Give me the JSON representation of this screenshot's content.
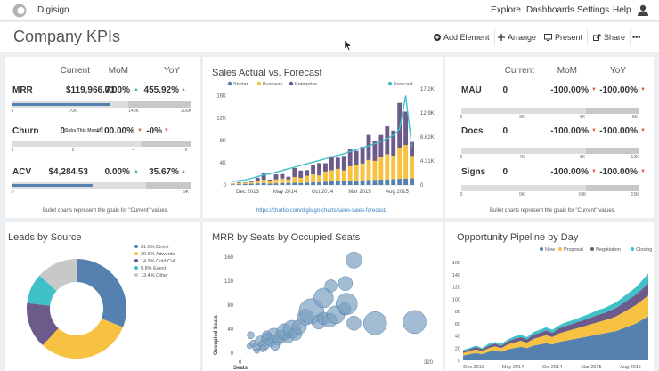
{
  "app": {
    "name": "Digisign",
    "nav": [
      "Explore",
      "Dashboards",
      "Settings",
      "Help"
    ]
  },
  "page": {
    "title": "Company KPIs",
    "toolbar": {
      "add_element": "Add Element",
      "arrange": "Arrange",
      "present": "Present",
      "share": "Share",
      "more": "•••"
    }
  },
  "colors": {
    "blue": "#5581b0",
    "orange": "#f7c242",
    "purple": "#6b5a8a",
    "teal": "#40c0c8",
    "green": "#5db87a",
    "grey": "#c8c8c8"
  },
  "kpi_left": {
    "headers": {
      "current": "Current",
      "mom": "MoM",
      "yoy": "YoY"
    },
    "rows": [
      {
        "label": "MRR",
        "current": "$119,966.71",
        "mom": "0.00%",
        "mom_dir": "▲",
        "yoy": "455.92%",
        "yoy_dir": "▲",
        "progress": 0.55,
        "ticks": [
          "0",
          "70K",
          "140K",
          "200K"
        ]
      },
      {
        "label": "Churn",
        "current": "0",
        "current_sub": "Subs This Month",
        "mom": "-100.00%",
        "mom_dir": "▼",
        "yoy": "-0%",
        "yoy_dir": "▼",
        "progress": 0.0,
        "ticks": [
          "0",
          "2",
          "4",
          "6"
        ]
      },
      {
        "label": "ACV",
        "current": "$4,284.53",
        "mom": "0.00%",
        "mom_dir": "▲",
        "yoy": "35.67%",
        "yoy_dir": "▲",
        "progress": 0.45,
        "ticks": [
          "0",
          "9K"
        ]
      }
    ],
    "note": "Bullet charts represent the goals for \"Current\" values."
  },
  "kpi_right": {
    "headers": {
      "current": "Current",
      "mom": "MoM",
      "yoy": "YoY"
    },
    "rows": [
      {
        "label": "MAU",
        "current": "0",
        "mom": "-100.00%",
        "mom_dir": "▼",
        "yoy": "-100.00%",
        "yoy_dir": "▼",
        "progress": 0.0,
        "ticks": [
          "0",
          "3K",
          "6K",
          "8K"
        ]
      },
      {
        "label": "Docs",
        "current": "0",
        "mom": "-100.00%",
        "mom_dir": "▼",
        "yoy": "-100.00%",
        "yoy_dir": "▼",
        "progress": 0.0,
        "ticks": [
          "0",
          "4K",
          "8K",
          "12K"
        ]
      },
      {
        "label": "Signs",
        "current": "0",
        "mom": "-100.00%",
        "mom_dir": "▼",
        "yoy": "-100.00%",
        "yoy_dir": "▼",
        "progress": 0.0,
        "ticks": [
          "0",
          "5K",
          "10K",
          "15K"
        ]
      }
    ],
    "note": "Bullet charts represent the goals for \"Current\" values."
  },
  "sales": {
    "title": "Sales Actual vs. Forecast",
    "link": "https://chartio.com/digisign-charts/sales-sales-forecast/"
  },
  "leads": {
    "title": "Leads by Source"
  },
  "mrr_seats": {
    "title": "MRR by Seats by Occupied Seats"
  },
  "pipeline": {
    "title": "Opportunity Pipeline by Day"
  },
  "chart_data": [
    {
      "type": "bar",
      "title": "Sales Actual vs. Forecast",
      "legend": [
        "Starter",
        "Business",
        "Enterprise"
      ],
      "forecast_label": "Forecast",
      "x_ticks": [
        "Dec 2013",
        "May 2014",
        "Oct 2014",
        "Mar 2015",
        "Aug 2015"
      ],
      "y_left_ticks": [
        "0",
        "4K",
        "8K",
        "12K",
        "16K"
      ],
      "y_right_ticks": [
        "0",
        "4.31K",
        "8.62K",
        "12.9K",
        "17.2K"
      ],
      "ylim": [
        0,
        17200
      ],
      "series": [
        {
          "name": "Starter",
          "values": [
            120,
            150,
            180,
            220,
            300,
            350,
            260,
            300,
            350,
            380,
            420,
            380,
            450,
            500,
            520,
            600,
            640,
            680,
            700,
            760,
            800,
            840,
            880,
            920,
            960,
            1000,
            1050,
            1100,
            1150,
            1200
          ]
        },
        {
          "name": "Business",
          "values": [
            100,
            200,
            150,
            300,
            500,
            600,
            400,
            700,
            800,
            600,
            1000,
            900,
            1200,
            1400,
            1200,
            1800,
            2000,
            2200,
            1900,
            2600,
            2800,
            3000,
            3600,
            3400,
            4000,
            4500,
            4200,
            5600,
            6000,
            4000
          ]
        },
        {
          "name": "Enterprise",
          "values": [
            50,
            150,
            100,
            200,
            500,
            1200,
            300,
            900,
            800,
            500,
            1600,
            1300,
            1000,
            1600,
            2200,
            1500,
            2500,
            2000,
            2600,
            3000,
            2500,
            3000,
            4500,
            3500,
            4000,
            5000,
            4500,
            8000,
            6000,
            2500
          ]
        }
      ],
      "forecast": [
        600,
        800,
        900,
        1200,
        1500,
        1800,
        2000,
        2300,
        2600,
        2900,
        3200,
        3500,
        3800,
        4100,
        4400,
        4700,
        5000,
        5300,
        5600,
        6000,
        6300,
        6700,
        7000,
        7400,
        7800,
        8300,
        8900,
        10000,
        16000,
        6800
      ]
    },
    {
      "type": "pie",
      "title": "Leads by Source",
      "labels": [
        "Direct",
        "Adwords",
        "Cold Call",
        "Event",
        "Other"
      ],
      "values": [
        31.0,
        30.9,
        14.9,
        9.8,
        13.4
      ],
      "legend": [
        "31.0% Direct",
        "30.9% Adwords",
        "14.9% Cold Call",
        "9.8% Event",
        "13.4% Other"
      ]
    },
    {
      "type": "scatter",
      "title": "MRR by Seats by Occupied Seats",
      "xlabel": "Seats",
      "ylabel": "Occupied Seats",
      "x_ticks": [
        "0",
        "320"
      ],
      "y_ticks": [
        "0",
        "40",
        "80",
        "120",
        "160"
      ],
      "xlim": [
        0,
        320
      ],
      "ylim": [
        0,
        160
      ],
      "points": [
        {
          "x": 18,
          "y": 12,
          "r": 3
        },
        {
          "x": 24,
          "y": 16,
          "r": 4
        },
        {
          "x": 30,
          "y": 10,
          "r": 5
        },
        {
          "x": 36,
          "y": 20,
          "r": 6
        },
        {
          "x": 42,
          "y": 14,
          "r": 6
        },
        {
          "x": 48,
          "y": 24,
          "r": 7
        },
        {
          "x": 52,
          "y": 18,
          "r": 5
        },
        {
          "x": 58,
          "y": 30,
          "r": 8
        },
        {
          "x": 64,
          "y": 22,
          "r": 6
        },
        {
          "x": 70,
          "y": 28,
          "r": 7
        },
        {
          "x": 76,
          "y": 36,
          "r": 9
        },
        {
          "x": 82,
          "y": 26,
          "r": 6
        },
        {
          "x": 88,
          "y": 40,
          "r": 10
        },
        {
          "x": 94,
          "y": 32,
          "r": 7
        },
        {
          "x": 100,
          "y": 44,
          "r": 8
        },
        {
          "x": 40,
          "y": 8,
          "r": 4
        },
        {
          "x": 46,
          "y": 30,
          "r": 5
        },
        {
          "x": 60,
          "y": 12,
          "r": 5
        },
        {
          "x": 110,
          "y": 60,
          "r": 9
        },
        {
          "x": 120,
          "y": 70,
          "r": 14
        },
        {
          "x": 132,
          "y": 52,
          "r": 8
        },
        {
          "x": 140,
          "y": 58,
          "r": 7
        },
        {
          "x": 150,
          "y": 55,
          "r": 8
        },
        {
          "x": 140,
          "y": 92,
          "r": 11
        },
        {
          "x": 160,
          "y": 64,
          "r": 10
        },
        {
          "x": 175,
          "y": 74,
          "r": 7
        },
        {
          "x": 152,
          "y": 112,
          "r": 7
        },
        {
          "x": 176,
          "y": 116,
          "r": 8
        },
        {
          "x": 190,
          "y": 155,
          "r": 9
        },
        {
          "x": 178,
          "y": 82,
          "r": 12
        },
        {
          "x": 225,
          "y": 50,
          "r": 13
        },
        {
          "x": 190,
          "y": 50,
          "r": 8
        },
        {
          "x": 290,
          "y": 52,
          "r": 13
        },
        {
          "x": 20,
          "y": 30,
          "r": 4
        },
        {
          "x": 30,
          "y": 4,
          "r": 3
        }
      ]
    },
    {
      "type": "area",
      "title": "Opportunity Pipeline by Day",
      "legend": [
        "New",
        "Proposal",
        "Negotiation",
        "Closing"
      ],
      "x_ticks": [
        "Dec 2013",
        "May 2014",
        "Oct 2014",
        "Mar 2015",
        "Aug 2015"
      ],
      "y_ticks": [
        "0",
        "20",
        "40",
        "60",
        "80",
        "100",
        "120",
        "140",
        "160"
      ],
      "ylim": [
        0,
        160
      ],
      "series": [
        {
          "name": "New",
          "values": [
            8,
            10,
            12,
            10,
            14,
            16,
            14,
            18,
            20,
            22,
            20,
            24,
            26,
            28,
            26,
            30,
            32,
            34,
            36,
            38,
            40,
            42,
            44,
            46,
            48,
            52,
            56,
            60,
            66,
            72
          ]
        },
        {
          "name": "Proposal",
          "values": [
            4,
            5,
            6,
            5,
            6,
            7,
            6,
            8,
            9,
            10,
            9,
            11,
            12,
            13,
            12,
            14,
            15,
            16,
            17,
            18,
            19,
            20,
            21,
            22,
            24,
            26,
            28,
            30,
            32,
            34
          ]
        },
        {
          "name": "Negotiation",
          "values": [
            3,
            3,
            4,
            3,
            4,
            4,
            4,
            5,
            6,
            6,
            5,
            7,
            7,
            8,
            7,
            8,
            9,
            9,
            10,
            10,
            11,
            12,
            12,
            13,
            14,
            15,
            16,
            17,
            18,
            20
          ]
        },
        {
          "name": "Closing",
          "values": [
            2,
            2,
            2,
            2,
            3,
            3,
            3,
            3,
            4,
            4,
            4,
            4,
            5,
            5,
            5,
            5,
            6,
            6,
            6,
            7,
            7,
            8,
            8,
            9,
            9,
            10,
            11,
            12,
            14,
            16
          ]
        }
      ]
    }
  ]
}
